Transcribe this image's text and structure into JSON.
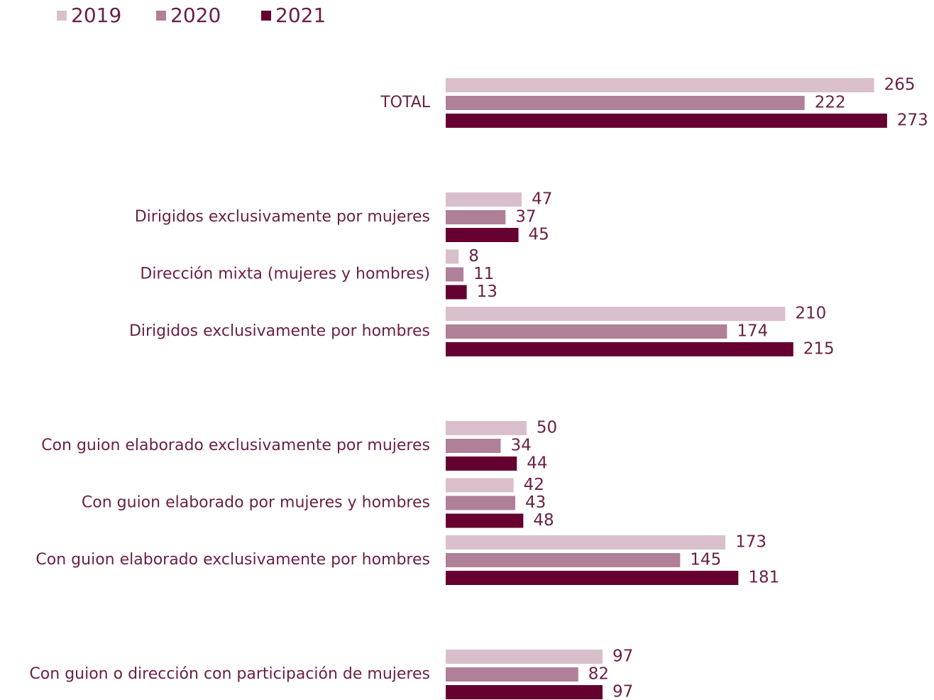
{
  "chart_data": {
    "type": "bar",
    "orientation": "horizontal",
    "categories": [
      "TOTAL",
      null,
      "Dirigidos exclusivamente por mujeres",
      "Dirección mixta (mujeres y hombres)",
      "Dirigidos exclusivamente por hombres",
      null,
      "Con guion elaborado exclusivamente por mujeres",
      "Con guion elaborado por mujeres y hombres",
      "Con guion elaborado exclusivamente por hombres",
      null,
      "Con guion o dirección con participación de mujeres"
    ],
    "series": [
      {
        "name": "2019",
        "color": "#d9bfcc",
        "values": [
          265,
          null,
          47,
          8,
          210,
          null,
          50,
          42,
          173,
          null,
          97
        ]
      },
      {
        "name": "2020",
        "color": "#b07f98",
        "values": [
          222,
          null,
          37,
          11,
          174,
          null,
          34,
          43,
          145,
          null,
          82
        ]
      },
      {
        "name": "2021",
        "color": "#650030",
        "values": [
          273,
          null,
          45,
          13,
          215,
          null,
          44,
          48,
          181,
          null,
          97
        ]
      }
    ],
    "legend": "top-left"
  }
}
